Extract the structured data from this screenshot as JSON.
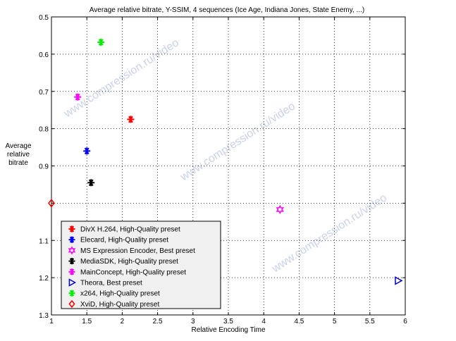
{
  "chart_data": {
    "type": "scatter",
    "title": "Average relative bitrate, Y-SSIM, 4 sequences (Ice Age, Indiana Jones, State Enemy, ...)",
    "xlabel": "Relative Encoding Time",
    "ylabel": [
      "Average",
      "relative",
      "bitrate"
    ],
    "xlim": [
      1,
      6
    ],
    "ylim": [
      0.5,
      1.3
    ],
    "y_reversed": true,
    "grid": true,
    "legend_position": "bottom-left",
    "xticks": [
      "1",
      "1.5",
      "2",
      "2.5",
      "3",
      "3.5",
      "4",
      "4.5",
      "5",
      "5.5",
      "6"
    ],
    "yticks": [
      {
        "v": 0.5,
        "label": "0.5"
      },
      {
        "v": 0.6,
        "label": "0.6"
      },
      {
        "v": 0.7,
        "label": "0.7"
      },
      {
        "v": 0.8,
        "label": "0.8"
      },
      {
        "v": 0.9,
        "label": "0.9"
      },
      {
        "v": 1.0,
        "label": ""
      },
      {
        "v": 1.1,
        "label": "1.1"
      },
      {
        "v": 1.2,
        "label": "1.2"
      },
      {
        "v": 1.3,
        "label": "1.3"
      }
    ],
    "series": [
      {
        "name": "DivX H.264, High-Quality preset",
        "color": "#ff0000",
        "marker": "asterisk",
        "x": 2.12,
        "y": 0.775
      },
      {
        "name": "Elecard, High-Quality preset",
        "color": "#0000ff",
        "marker": "asterisk",
        "x": 1.5,
        "y": 0.86
      },
      {
        "name": "MS Expression Encoder, Best preset",
        "color": "#ff00ff",
        "marker": "hexagram",
        "x": 4.23,
        "y": 1.017
      },
      {
        "name": "MediaSDK, High-Quality preset",
        "color": "#000000",
        "marker": "asterisk",
        "x": 1.56,
        "y": 0.945
      },
      {
        "name": "MainConcept, High-Quality preset",
        "color": "#ff00ff",
        "marker": "asterisk",
        "x": 1.37,
        "y": 0.715
      },
      {
        "name": "Theora, Best preset",
        "color": "#0000cc",
        "marker": "triangle-right",
        "x": 5.9,
        "y": 1.208
      },
      {
        "name": "x264, High-Quality preset",
        "color": "#00ee00",
        "marker": "asterisk",
        "x": 1.7,
        "y": 0.568
      },
      {
        "name": "XviD, High-Quality preset",
        "color": "#ee0000",
        "marker": "diamond",
        "x": 1.0,
        "y": 1.0
      }
    ]
  },
  "watermark": "www.compression.ru/video"
}
